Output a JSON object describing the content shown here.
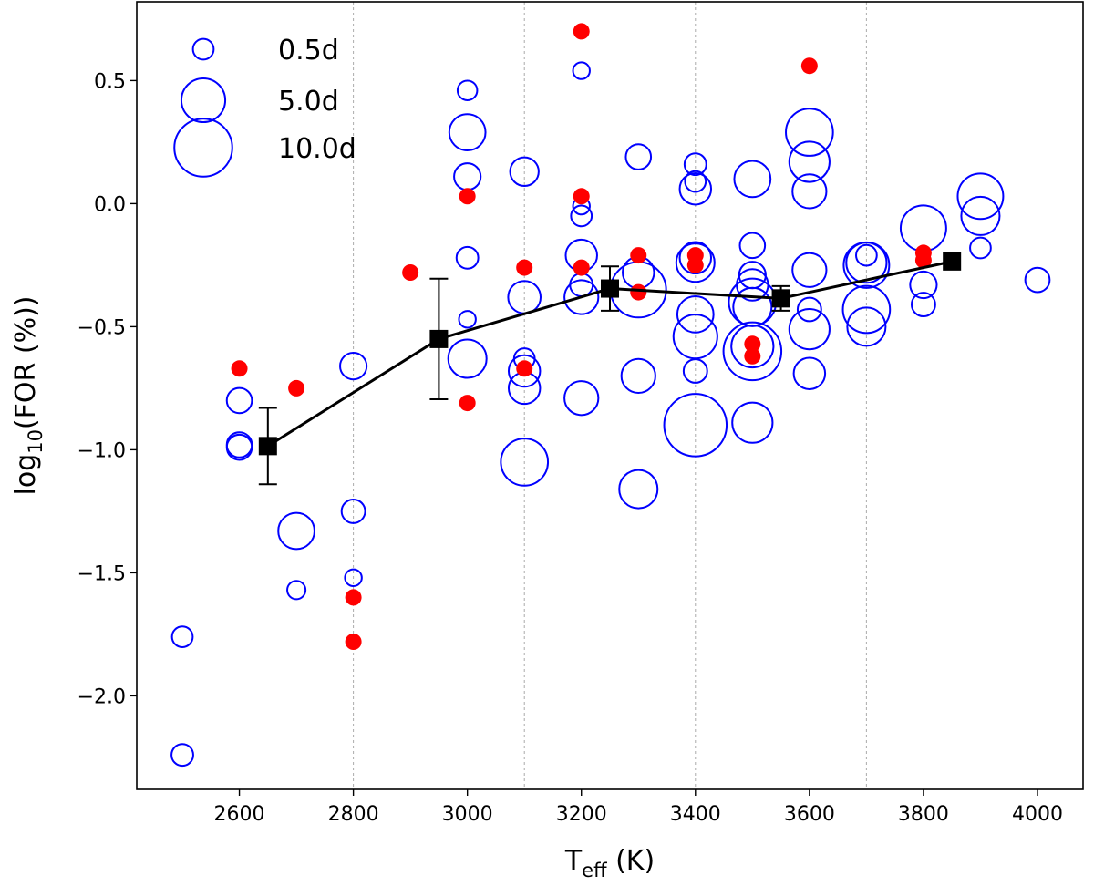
{
  "chart_data": {
    "type": "scatter",
    "title": "",
    "xlabel": "Teff (K)",
    "xlabel_main": "T",
    "xlabel_sub": "eff",
    "xlabel_unit": " (K)",
    "ylabel": "log10(FOR (%))",
    "ylabel_pre": "log",
    "ylabel_sub": "10",
    "ylabel_post": "(FOR (%))",
    "xlim": [
      2420,
      4080
    ],
    "ylim": [
      -2.38,
      0.82
    ],
    "xticks": [
      2600,
      2800,
      3000,
      3200,
      3400,
      3600,
      3800,
      4000
    ],
    "xtick_labels": [
      "2600",
      "2800",
      "3000",
      "3200",
      "3400",
      "3600",
      "3800",
      "4000"
    ],
    "yticks": [
      0.5,
      0.0,
      -0.5,
      -1.0,
      -1.5,
      -2.0
    ],
    "ytick_labels": [
      "0.5",
      "0.0",
      "−0.5",
      "−1.0",
      "−1.5",
      "−2.0"
    ],
    "vlines": [
      2800,
      3100,
      3400,
      3700
    ],
    "colors": {
      "open": "#0000ff",
      "filled": "#ff0000",
      "binned": "#000000",
      "grid": "#aaaaaa"
    },
    "legend": [
      {
        "label": "0.5d",
        "period": 0.5
      },
      {
        "label": "5.0d",
        "period": 5.0
      },
      {
        "label": "10.0d",
        "period": 10.0
      }
    ],
    "series": [
      {
        "name": "open circles (period-scaled)",
        "style": "open",
        "points": [
          [
            2500,
            -1.76,
            0.5
          ],
          [
            2500,
            -2.24,
            0.6
          ],
          [
            2600,
            -0.8,
            1.0
          ],
          [
            2600,
            -0.98,
            1.0
          ],
          [
            2600,
            -0.99,
            1.0
          ],
          [
            2700,
            -1.33,
            3.0
          ],
          [
            2700,
            -1.57,
            0.3
          ],
          [
            2800,
            -0.66,
            1.2
          ],
          [
            2800,
            -1.25,
            0.8
          ],
          [
            2800,
            -1.52,
            0.2
          ],
          [
            3000,
            0.46,
            0.4
          ],
          [
            3000,
            0.29,
            3.0
          ],
          [
            3000,
            0.11,
            1.2
          ],
          [
            3000,
            -0.22,
            0.6
          ],
          [
            3000,
            -0.47,
            0.2
          ],
          [
            3000,
            -0.63,
            3.5
          ],
          [
            3100,
            0.13,
            1.5
          ],
          [
            3100,
            -0.38,
            2.2
          ],
          [
            3100,
            -0.63,
            0.5
          ],
          [
            3100,
            -0.68,
            2.0
          ],
          [
            3100,
            -0.75,
            2.0
          ],
          [
            3100,
            -1.05,
            6.0
          ],
          [
            3200,
            0.54,
            0.2
          ],
          [
            3200,
            -0.01,
            0.2
          ],
          [
            3200,
            -0.05,
            0.5
          ],
          [
            3200,
            -0.21,
            2.0
          ],
          [
            3200,
            -0.33,
            0.7
          ],
          [
            3200,
            -0.38,
            2.5
          ],
          [
            3200,
            -0.79,
            2.5
          ],
          [
            3300,
            0.19,
            1.0
          ],
          [
            3300,
            -0.28,
            2.0
          ],
          [
            3300,
            -0.35,
            9.0
          ],
          [
            3300,
            -0.7,
            2.5
          ],
          [
            3300,
            -1.16,
            3.5
          ],
          [
            3400,
            0.16,
            0.6
          ],
          [
            3400,
            0.06,
            2.0
          ],
          [
            3400,
            0.09,
            0.5
          ],
          [
            3400,
            -0.22,
            2.0
          ],
          [
            3400,
            -0.24,
            3.5
          ],
          [
            3400,
            -0.45,
            3.0
          ],
          [
            3400,
            -0.54,
            5.0
          ],
          [
            3400,
            -0.68,
            0.8
          ],
          [
            3400,
            -0.9,
            12.0
          ],
          [
            3500,
            0.1,
            3.0
          ],
          [
            3500,
            -0.17,
            1.0
          ],
          [
            3500,
            -0.29,
            1.2
          ],
          [
            3500,
            -0.33,
            2.0
          ],
          [
            3500,
            -0.4,
            6.0
          ],
          [
            3500,
            -0.42,
            3.5
          ],
          [
            3500,
            -0.58,
            4.5
          ],
          [
            3500,
            -0.6,
            10.0
          ],
          [
            3500,
            -0.89,
            4.0
          ],
          [
            3600,
            0.29,
            6.0
          ],
          [
            3600,
            0.17,
            4.0
          ],
          [
            3600,
            0.05,
            2.5
          ],
          [
            3600,
            -0.27,
            2.5
          ],
          [
            3600,
            -0.43,
            0.8
          ],
          [
            3600,
            -0.51,
            4.0
          ],
          [
            3600,
            -0.69,
            2.0
          ],
          [
            3700,
            -0.21,
            0.5
          ],
          [
            3700,
            -0.24,
            4.0
          ],
          [
            3700,
            -0.25,
            5.5
          ],
          [
            3700,
            -0.43,
            6.0
          ],
          [
            3700,
            -0.5,
            3.5
          ],
          [
            3800,
            -0.1,
            5.5
          ],
          [
            3800,
            -0.33,
            1.2
          ],
          [
            3800,
            -0.41,
            0.8
          ],
          [
            3900,
            0.03,
            5.5
          ],
          [
            3900,
            -0.05,
            3.5
          ],
          [
            3900,
            -0.18,
            0.5
          ],
          [
            4000,
            -0.31,
            0.9
          ]
        ]
      },
      {
        "name": "red filled points",
        "style": "filled",
        "points": [
          [
            2600,
            -0.67
          ],
          [
            2700,
            -0.75
          ],
          [
            2800,
            -1.6
          ],
          [
            2800,
            -1.78
          ],
          [
            2900,
            -0.28
          ],
          [
            3000,
            0.03
          ],
          [
            3000,
            -0.81
          ],
          [
            3100,
            -0.26
          ],
          [
            3100,
            -0.67
          ],
          [
            3200,
            0.7
          ],
          [
            3200,
            0.03
          ],
          [
            3200,
            -0.26
          ],
          [
            3300,
            -0.21
          ],
          [
            3300,
            -0.36
          ],
          [
            3400,
            -0.21
          ],
          [
            3400,
            -0.25
          ],
          [
            3500,
            -0.57
          ],
          [
            3500,
            -0.62
          ],
          [
            3600,
            0.56
          ],
          [
            3800,
            -0.2
          ],
          [
            3800,
            -0.23
          ]
        ]
      },
      {
        "name": "binned mean",
        "style": "binned",
        "points": [
          [
            2650,
            -0.985,
            0.155
          ],
          [
            2950,
            -0.55,
            0.245
          ],
          [
            3250,
            -0.345,
            0.09
          ],
          [
            3550,
            -0.385,
            0.05
          ],
          [
            3850,
            -0.235,
            0.0
          ]
        ]
      }
    ]
  }
}
